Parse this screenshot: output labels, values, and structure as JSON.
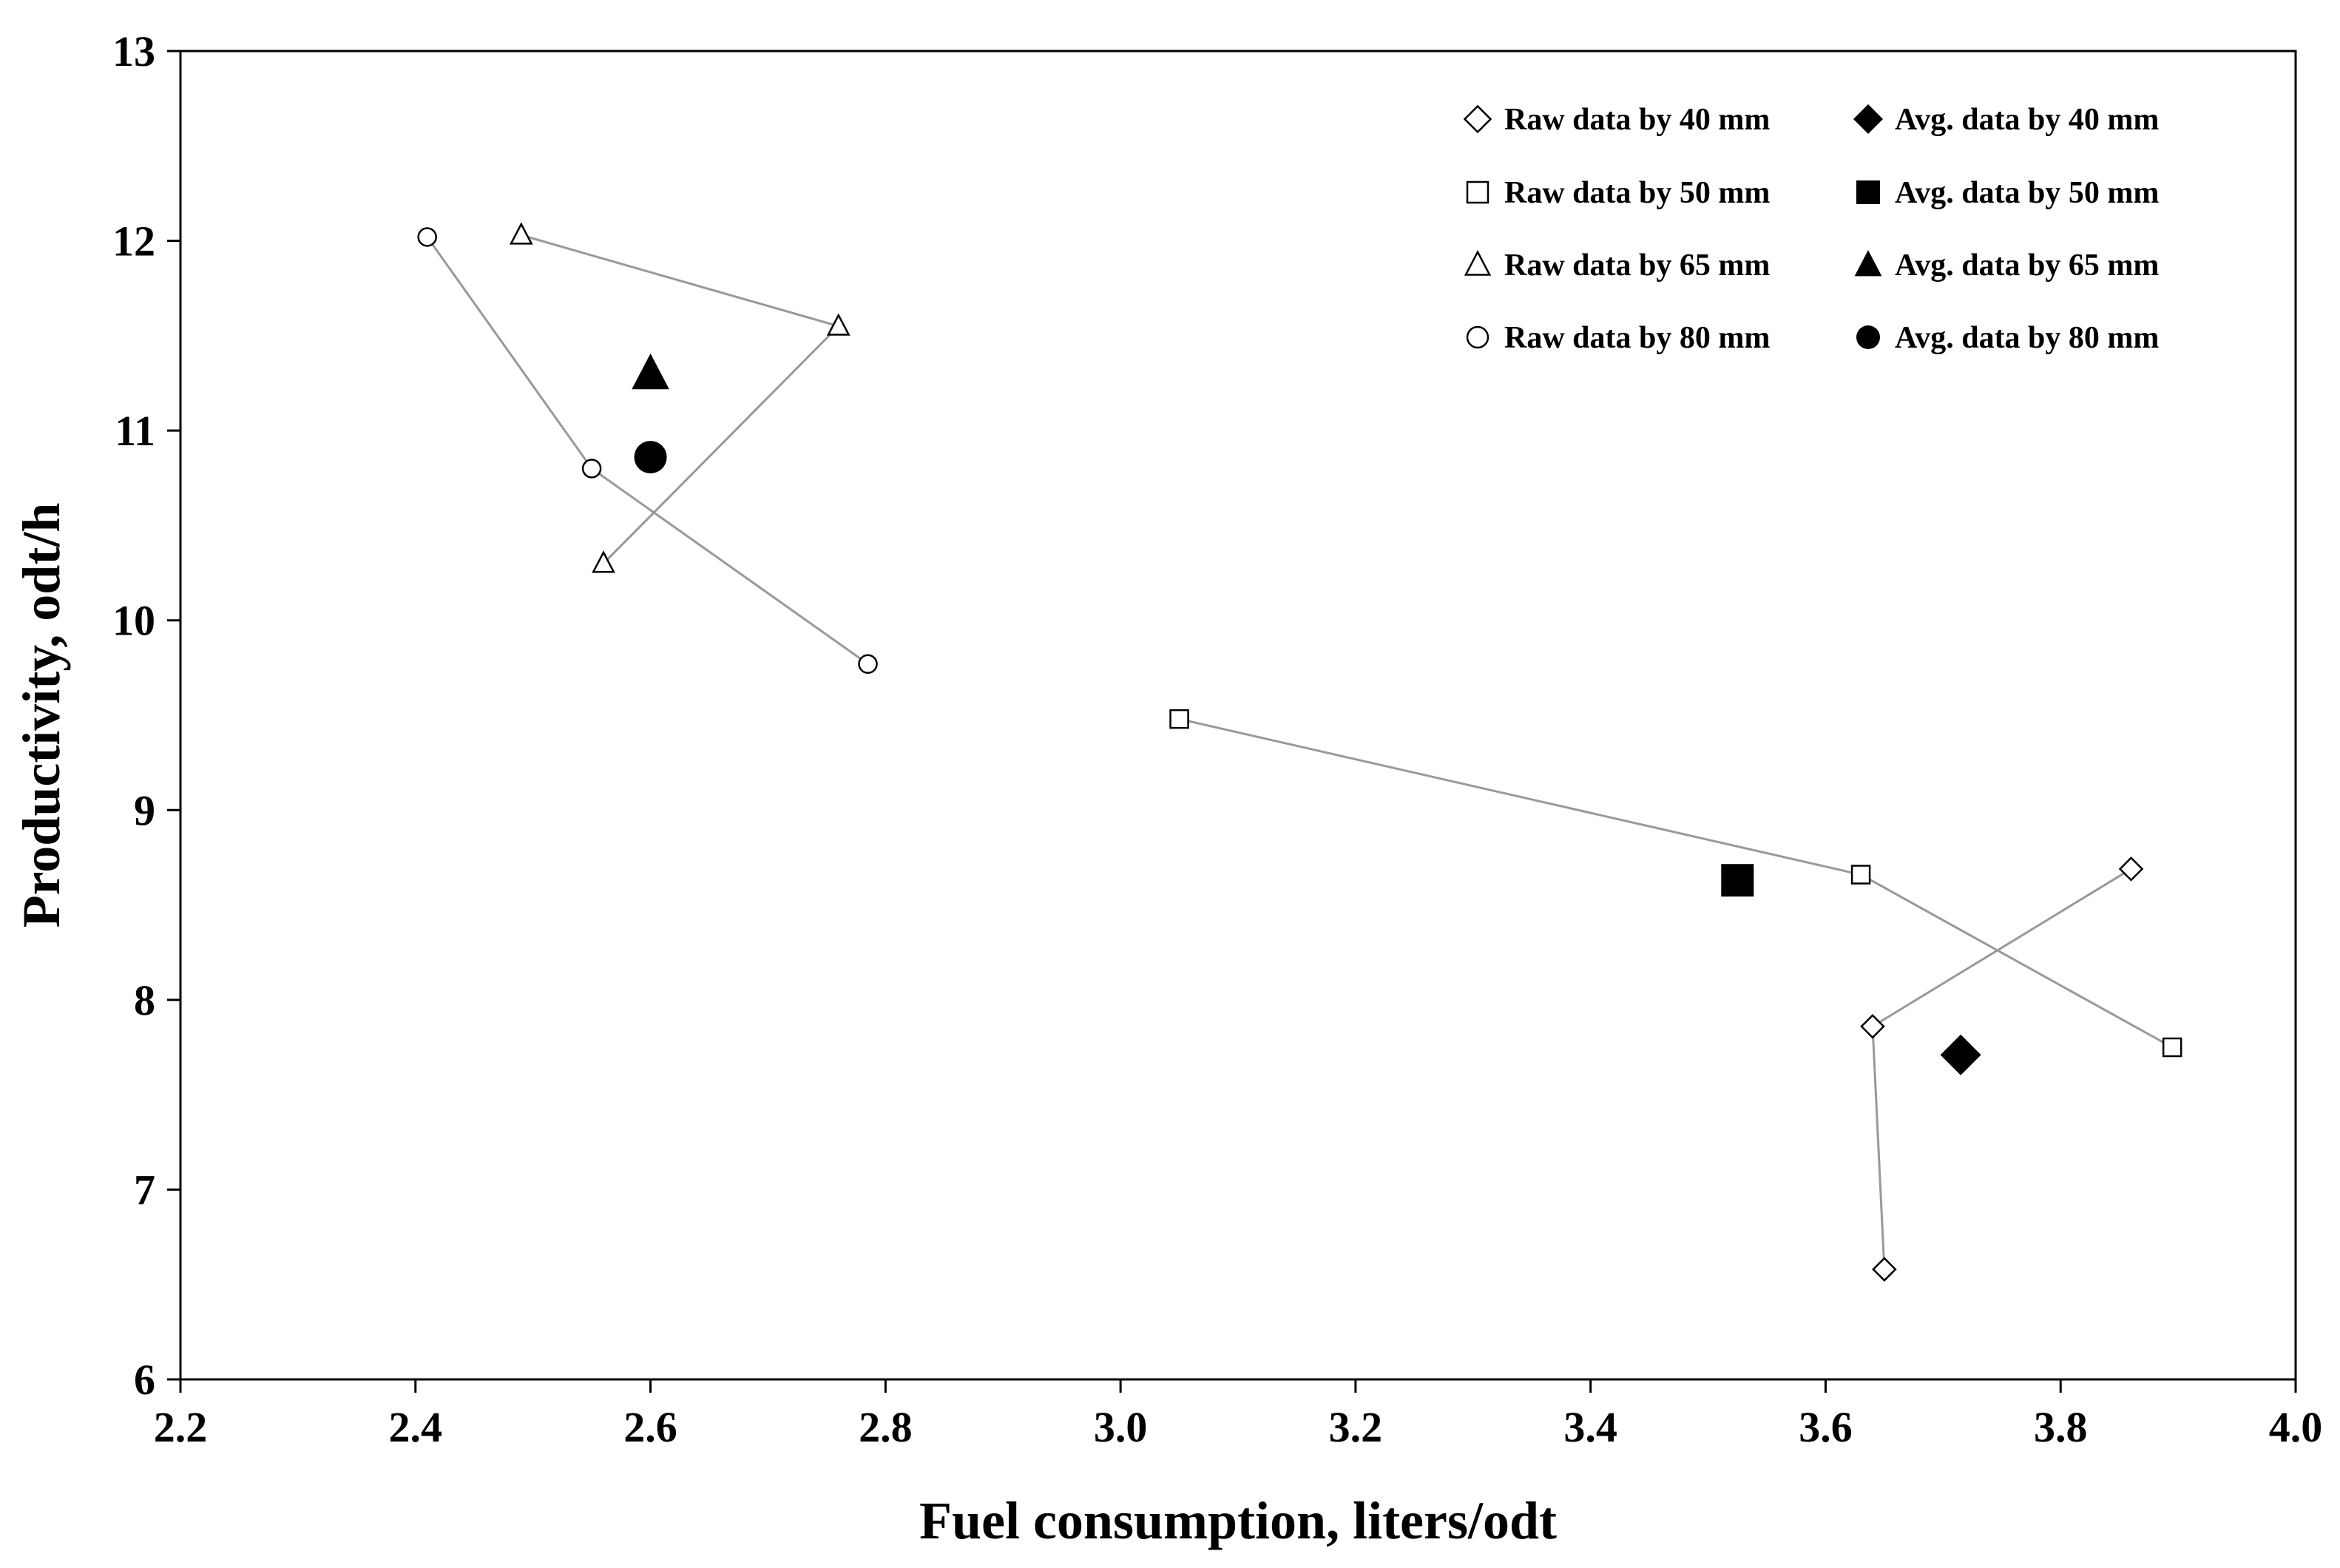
{
  "chart_data": {
    "type": "scatter",
    "title": "",
    "xlabel": "Fuel consumption, liters/odt",
    "ylabel": "Productivity, odt/h",
    "xlim": [
      2.2,
      4.0
    ],
    "ylim": [
      6,
      13
    ],
    "xticks": [
      2.2,
      2.4,
      2.6,
      2.8,
      3.0,
      3.2,
      3.4,
      3.6,
      3.8,
      4.0
    ],
    "yticks": [
      6,
      7,
      8,
      9,
      10,
      11,
      12,
      13
    ],
    "xtick_labels": [
      "2.2",
      "2.4",
      "2.6",
      "2.8",
      "3.0",
      "3.2",
      "3.4",
      "3.6",
      "3.8",
      "4.0"
    ],
    "ytick_labels": [
      "6",
      "7",
      "8",
      "9",
      "10",
      "11",
      "12",
      "13"
    ],
    "grid": false,
    "legend_position": "top-right",
    "series": [
      {
        "name": "Raw data by 40 mm",
        "marker": "diamond",
        "filled": false,
        "connected": true,
        "points": [
          [
            3.65,
            6.58
          ],
          [
            3.64,
            7.86
          ],
          [
            3.86,
            8.69
          ]
        ]
      },
      {
        "name": "Raw data by 50 mm",
        "marker": "square",
        "filled": false,
        "connected": true,
        "points": [
          [
            3.05,
            9.48
          ],
          [
            3.63,
            8.66
          ],
          [
            3.895,
            7.75
          ]
        ]
      },
      {
        "name": "Raw data by 65 mm",
        "marker": "triangle",
        "filled": false,
        "connected": true,
        "points": [
          [
            2.49,
            12.03
          ],
          [
            2.76,
            11.55
          ],
          [
            2.56,
            10.3
          ]
        ]
      },
      {
        "name": "Raw data by 80 mm",
        "marker": "circle",
        "filled": false,
        "connected": true,
        "points": [
          [
            2.41,
            12.02
          ],
          [
            2.55,
            10.8
          ],
          [
            2.785,
            9.77
          ]
        ]
      },
      {
        "name": "Avg. data by 40 mm",
        "marker": "diamond",
        "filled": true,
        "connected": false,
        "points": [
          [
            3.715,
            7.71
          ]
        ]
      },
      {
        "name": "Avg. data by 50 mm",
        "marker": "square",
        "filled": true,
        "connected": false,
        "points": [
          [
            3.525,
            8.63
          ]
        ]
      },
      {
        "name": "Avg. data by 65 mm",
        "marker": "triangle",
        "filled": true,
        "connected": false,
        "points": [
          [
            2.6,
            11.3
          ]
        ]
      },
      {
        "name": "Avg. data by 80 mm",
        "marker": "circle",
        "filled": true,
        "connected": false,
        "points": [
          [
            2.6,
            10.86
          ]
        ]
      }
    ],
    "legend": [
      [
        "Raw data by 40 mm",
        "Avg. data by 40 mm"
      ],
      [
        "Raw data by 50 mm",
        "Avg. data by 50 mm"
      ],
      [
        "Raw data by 65 mm",
        "Avg. data by 65 mm"
      ],
      [
        "Raw data by 80 mm",
        "Avg. data by 80 mm"
      ]
    ],
    "colors": {
      "line": "#999999",
      "marker": "#000000",
      "axis": "#000000"
    }
  }
}
